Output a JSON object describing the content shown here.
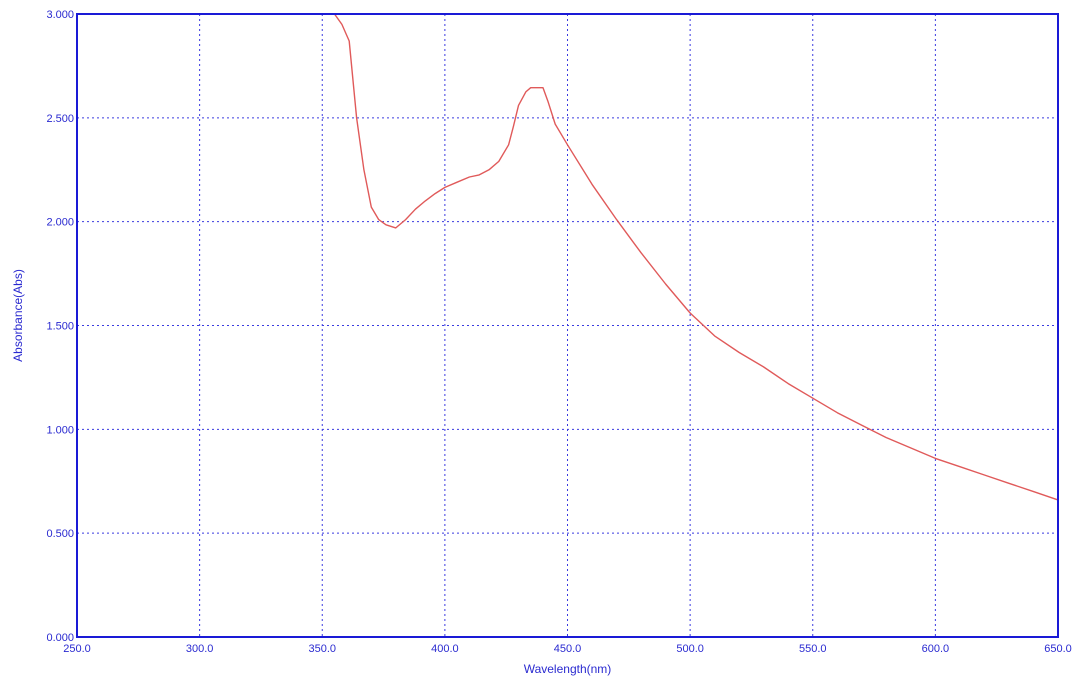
{
  "chart_data": {
    "type": "line",
    "title": "",
    "xlabel": "Wavelength(nm)",
    "ylabel": "Absorbance(Abs)",
    "xlim": [
      250.0,
      650.0
    ],
    "ylim": [
      0.0,
      3.0
    ],
    "xticks": [
      250.0,
      300.0,
      350.0,
      400.0,
      450.0,
      500.0,
      550.0,
      600.0,
      650.0
    ],
    "xtick_labels": [
      "250.0",
      "300.0",
      "350.0",
      "400.0",
      "450.0",
      "500.0",
      "550.0",
      "600.0",
      "650.0"
    ],
    "yticks": [
      0.0,
      0.5,
      1.0,
      1.5,
      2.0,
      2.5,
      3.0
    ],
    "ytick_labels": [
      "0.000",
      "0.500",
      "1.000",
      "1.500",
      "2.000",
      "2.500",
      "3.000"
    ],
    "grid": true,
    "grid_style": "dotted",
    "colors": {
      "axis": "#1a1ad6",
      "grid": "#3a3ae0",
      "series": "#e05a5a",
      "text": "#2a2ad0"
    },
    "series": [
      {
        "x": [
          250,
          300,
          350,
          355,
          358,
          361,
          364,
          367,
          370,
          373,
          376,
          380,
          384,
          388,
          392,
          396,
          400,
          405,
          410,
          414,
          418,
          422,
          426,
          428,
          430,
          433,
          435,
          437,
          440,
          442,
          445,
          450,
          460,
          470,
          480,
          490,
          500,
          510,
          520,
          530,
          540,
          550,
          560,
          570,
          580,
          590,
          600,
          610,
          620,
          630,
          640,
          650
        ],
        "y": [
          3.0,
          3.0,
          3.0,
          3.0,
          2.95,
          2.87,
          2.5,
          2.25,
          2.07,
          2.01,
          1.985,
          1.97,
          2.01,
          2.06,
          2.1,
          2.135,
          2.165,
          2.19,
          2.215,
          2.225,
          2.25,
          2.29,
          2.37,
          2.46,
          2.56,
          2.625,
          2.645,
          2.645,
          2.645,
          2.58,
          2.47,
          2.37,
          2.18,
          2.01,
          1.85,
          1.7,
          1.56,
          1.45,
          1.37,
          1.3,
          1.22,
          1.15,
          1.08,
          1.02,
          0.96,
          0.91,
          0.86,
          0.82,
          0.78,
          0.74,
          0.7,
          0.66
        ]
      }
    ]
  }
}
